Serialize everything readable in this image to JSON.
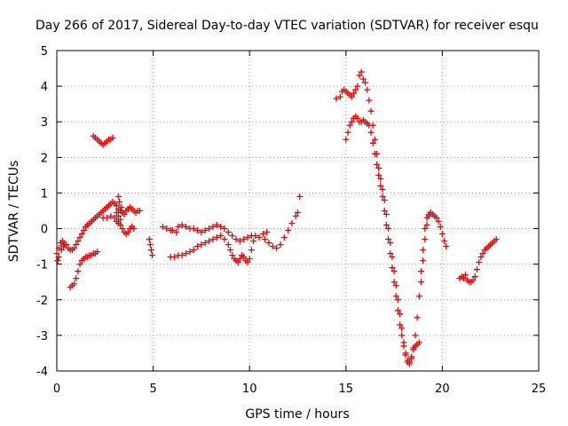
{
  "chart_data": {
    "type": "scatter",
    "title": "Day 266 of 2017, Sidereal Day-to-day VTEC variation (SDTVAR) for receiver esqu",
    "xlabel": "GPS time / hours",
    "ylabel": "SDTVAR / TECUs",
    "xlim": [
      0,
      25
    ],
    "ylim": [
      -4,
      5
    ],
    "xticks": [
      "0",
      "5",
      "10",
      "15",
      "20",
      "25"
    ],
    "yticks": [
      "-4",
      "-3",
      "-2",
      "-1",
      "0",
      "1",
      "2",
      "3",
      "4",
      "5"
    ],
    "grid": true,
    "marker": "+",
    "color": "#ee0000",
    "series": [
      {
        "points": [
          [
            0.0,
            -0.7
          ],
          [
            0.1,
            -0.55
          ],
          [
            0.2,
            -0.4
          ],
          [
            0.3,
            -0.35
          ],
          [
            0.4,
            -0.45
          ],
          [
            0.5,
            -0.45
          ],
          [
            0.6,
            -0.55
          ],
          [
            0.7,
            -0.6
          ],
          [
            0.8,
            -0.6
          ],
          [
            0.9,
            -0.55
          ],
          [
            1.0,
            -0.45
          ],
          [
            1.1,
            -0.35
          ],
          [
            1.2,
            -0.25
          ],
          [
            1.3,
            -0.15
          ],
          [
            1.4,
            -0.05
          ],
          [
            1.5,
            0.05
          ],
          [
            1.6,
            0.1
          ],
          [
            1.7,
            0.15
          ],
          [
            1.8,
            0.2
          ],
          [
            1.9,
            0.25
          ],
          [
            2.0,
            0.3
          ],
          [
            2.1,
            0.35
          ],
          [
            2.2,
            0.4
          ],
          [
            2.3,
            0.45
          ],
          [
            2.4,
            0.5
          ],
          [
            2.5,
            0.55
          ],
          [
            2.6,
            0.6
          ],
          [
            2.7,
            0.65
          ],
          [
            2.8,
            0.7
          ],
          [
            2.9,
            0.75
          ],
          [
            3.0,
            0.7
          ],
          [
            3.1,
            0.65
          ],
          [
            3.2,
            0.55
          ],
          [
            3.3,
            0.5
          ],
          [
            3.4,
            0.45
          ],
          [
            3.5,
            0.4
          ],
          [
            3.6,
            0.5
          ],
          [
            3.7,
            0.55
          ],
          [
            3.8,
            0.6
          ],
          [
            3.9,
            0.55
          ],
          [
            4.0,
            0.5
          ],
          [
            4.1,
            0.45
          ],
          [
            4.2,
            0.5
          ],
          [
            4.3,
            0.5
          ],
          [
            0.05,
            -0.9
          ],
          [
            0.1,
            -0.8
          ],
          [
            0.25,
            -0.6
          ],
          [
            0.35,
            -0.5
          ],
          [
            2.4,
            0.3
          ],
          [
            2.6,
            0.3
          ],
          [
            2.8,
            0.35
          ],
          [
            3.0,
            0.3
          ],
          [
            3.1,
            0.2
          ],
          [
            3.2,
            0.15
          ],
          [
            3.3,
            0.1
          ],
          [
            3.4,
            0.0
          ],
          [
            3.5,
            -0.1
          ],
          [
            3.6,
            -0.15
          ],
          [
            3.7,
            -0.1
          ],
          [
            3.8,
            0.0
          ],
          [
            3.9,
            0.05
          ],
          [
            4.0,
            0.0
          ],
          [
            3.2,
            0.9
          ],
          [
            3.25,
            0.75
          ],
          [
            3.35,
            0.6
          ],
          [
            3.4,
            0.45
          ],
          [
            3.3,
            0.25
          ],
          [
            3.2,
            0.35
          ],
          [
            3.1,
            0.45
          ],
          [
            4.8,
            -0.3
          ],
          [
            4.85,
            -0.45
          ],
          [
            4.9,
            -0.6
          ],
          [
            4.95,
            -0.75
          ],
          [
            0.7,
            -1.65
          ],
          [
            0.8,
            -1.6
          ],
          [
            0.9,
            -1.55
          ],
          [
            1.0,
            -1.4
          ],
          [
            1.1,
            -1.2
          ],
          [
            1.2,
            -1.0
          ],
          [
            1.3,
            -0.9
          ],
          [
            1.4,
            -0.85
          ],
          [
            1.5,
            -0.8
          ],
          [
            1.6,
            -0.8
          ],
          [
            1.7,
            -0.75
          ],
          [
            1.8,
            -0.75
          ],
          [
            1.9,
            -0.7
          ],
          [
            2.0,
            -0.7
          ],
          [
            2.1,
            -0.65
          ],
          [
            1.9,
            2.6
          ],
          [
            2.0,
            2.55
          ],
          [
            2.1,
            2.5
          ],
          [
            2.2,
            2.45
          ],
          [
            2.3,
            2.4
          ],
          [
            2.4,
            2.35
          ],
          [
            2.5,
            2.4
          ],
          [
            2.6,
            2.45
          ],
          [
            2.7,
            2.5
          ],
          [
            2.8,
            2.5
          ],
          [
            2.9,
            2.55
          ],
          [
            5.5,
            0.05
          ],
          [
            5.7,
            0.0
          ],
          [
            5.9,
            -0.05
          ],
          [
            6.0,
            -0.05
          ],
          [
            6.2,
            -0.1
          ],
          [
            6.3,
            0.05
          ],
          [
            6.5,
            0.1
          ],
          [
            6.7,
            0.05
          ],
          [
            6.9,
            0.0
          ],
          [
            7.1,
            0.0
          ],
          [
            7.3,
            -0.05
          ],
          [
            7.5,
            -0.1
          ],
          [
            7.7,
            -0.05
          ],
          [
            7.9,
            0.0
          ],
          [
            8.1,
            0.05
          ],
          [
            8.3,
            0.1
          ],
          [
            8.5,
            0.05
          ],
          [
            8.7,
            0.0
          ],
          [
            8.9,
            -0.1
          ],
          [
            9.1,
            -0.2
          ],
          [
            9.3,
            -0.3
          ],
          [
            9.5,
            -0.35
          ],
          [
            9.7,
            -0.3
          ],
          [
            9.9,
            -0.25
          ],
          [
            10.1,
            -0.2
          ],
          [
            10.3,
            -0.2
          ],
          [
            10.5,
            -0.25
          ],
          [
            10.7,
            -0.15
          ],
          [
            10.9,
            -0.1
          ],
          [
            5.9,
            -0.8
          ],
          [
            6.1,
            -0.8
          ],
          [
            6.3,
            -0.75
          ],
          [
            6.5,
            -0.75
          ],
          [
            6.7,
            -0.7
          ],
          [
            6.9,
            -0.65
          ],
          [
            7.1,
            -0.6
          ],
          [
            7.3,
            -0.5
          ],
          [
            7.5,
            -0.45
          ],
          [
            7.7,
            -0.4
          ],
          [
            7.9,
            -0.35
          ],
          [
            8.1,
            -0.3
          ],
          [
            8.3,
            -0.25
          ],
          [
            8.5,
            -0.2
          ],
          [
            8.7,
            -0.3
          ],
          [
            8.9,
            -0.45
          ],
          [
            9.0,
            -0.6
          ],
          [
            9.1,
            -0.75
          ],
          [
            9.2,
            -0.85
          ],
          [
            9.3,
            -0.9
          ],
          [
            9.4,
            -0.95
          ],
          [
            9.5,
            -0.85
          ],
          [
            9.6,
            -0.75
          ],
          [
            9.7,
            -0.8
          ],
          [
            9.8,
            -0.9
          ],
          [
            9.9,
            -0.95
          ],
          [
            10.0,
            -0.85
          ],
          [
            10.1,
            -0.6
          ],
          [
            10.2,
            -0.35
          ],
          [
            10.8,
            -0.3
          ],
          [
            11.0,
            -0.4
          ],
          [
            11.2,
            -0.5
          ],
          [
            11.4,
            -0.55
          ],
          [
            11.6,
            -0.45
          ],
          [
            11.8,
            -0.25
          ],
          [
            12.0,
            -0.05
          ],
          [
            12.2,
            0.15
          ],
          [
            12.4,
            0.35
          ],
          [
            12.5,
            0.45
          ],
          [
            12.6,
            0.9
          ],
          [
            14.5,
            3.65
          ],
          [
            14.7,
            3.7
          ],
          [
            14.8,
            3.85
          ],
          [
            14.9,
            3.9
          ],
          [
            15.0,
            3.85
          ],
          [
            15.1,
            3.8
          ],
          [
            15.2,
            3.75
          ],
          [
            15.3,
            3.7
          ],
          [
            15.4,
            3.8
          ],
          [
            15.5,
            3.9
          ],
          [
            15.6,
            4.0
          ],
          [
            15.7,
            4.3
          ],
          [
            15.8,
            4.4
          ],
          [
            15.9,
            4.2
          ],
          [
            16.0,
            4.1
          ],
          [
            16.1,
            3.9
          ],
          [
            16.2,
            3.6
          ],
          [
            16.3,
            3.3
          ],
          [
            16.4,
            2.9
          ],
          [
            16.5,
            2.5
          ],
          [
            16.6,
            2.1
          ],
          [
            16.7,
            1.7
          ],
          [
            16.8,
            1.4
          ],
          [
            16.9,
            1.1
          ],
          [
            17.0,
            0.8
          ],
          [
            17.1,
            0.4
          ],
          [
            17.2,
            0.0
          ],
          [
            17.3,
            -0.4
          ],
          [
            17.4,
            -0.8
          ],
          [
            17.5,
            -1.2
          ],
          [
            17.6,
            -1.6
          ],
          [
            17.7,
            -2.0
          ],
          [
            17.8,
            -2.4
          ],
          [
            17.9,
            -2.8
          ],
          [
            18.0,
            -3.2
          ],
          [
            18.1,
            -3.5
          ],
          [
            18.2,
            -3.7
          ],
          [
            18.3,
            -3.75
          ],
          [
            18.4,
            -3.6
          ],
          [
            18.5,
            -3.4
          ],
          [
            18.6,
            -3.3
          ],
          [
            18.7,
            -3.25
          ],
          [
            18.8,
            -3.2
          ],
          [
            15.0,
            2.5
          ],
          [
            15.1,
            2.7
          ],
          [
            15.2,
            2.9
          ],
          [
            15.3,
            3.0
          ],
          [
            15.4,
            3.1
          ],
          [
            15.5,
            3.15
          ],
          [
            15.6,
            3.1
          ],
          [
            15.7,
            3.0
          ],
          [
            15.8,
            3.0
          ],
          [
            15.9,
            3.05
          ],
          [
            16.0,
            3.0
          ],
          [
            16.1,
            2.95
          ],
          [
            16.2,
            2.9
          ],
          [
            16.3,
            2.7
          ],
          [
            16.4,
            2.4
          ],
          [
            16.5,
            2.1
          ],
          [
            16.6,
            1.8
          ],
          [
            16.7,
            1.5
          ],
          [
            16.8,
            1.2
          ],
          [
            16.9,
            0.9
          ],
          [
            17.0,
            0.5
          ],
          [
            17.1,
            0.1
          ],
          [
            17.2,
            -0.3
          ],
          [
            17.3,
            -0.7
          ],
          [
            17.4,
            -1.1
          ],
          [
            17.5,
            -1.5
          ],
          [
            17.6,
            -1.9
          ],
          [
            17.7,
            -2.3
          ],
          [
            17.8,
            -2.7
          ],
          [
            17.9,
            -3.0
          ],
          [
            18.0,
            -3.3
          ],
          [
            18.1,
            -3.55
          ],
          [
            18.2,
            -3.75
          ],
          [
            18.3,
            -3.8
          ],
          [
            18.4,
            -3.65
          ],
          [
            18.5,
            -3.35
          ],
          [
            18.6,
            -3.0
          ],
          [
            18.7,
            -2.5
          ],
          [
            18.8,
            -1.9
          ],
          [
            18.9,
            -1.2
          ],
          [
            19.0,
            -0.6
          ],
          [
            19.1,
            0.0
          ],
          [
            19.2,
            0.3
          ],
          [
            19.3,
            0.4
          ],
          [
            19.4,
            0.45
          ],
          [
            19.5,
            0.4
          ],
          [
            19.6,
            0.35
          ],
          [
            19.7,
            0.3
          ],
          [
            19.8,
            0.2
          ],
          [
            19.9,
            0.05
          ],
          [
            20.0,
            -0.15
          ],
          [
            20.1,
            -0.35
          ],
          [
            20.2,
            -0.5
          ],
          [
            18.9,
            -1.5
          ],
          [
            19.0,
            -0.9
          ],
          [
            19.1,
            -0.3
          ],
          [
            19.2,
            0.1
          ],
          [
            19.3,
            0.35
          ],
          [
            20.9,
            -1.4
          ],
          [
            21.0,
            -1.35
          ],
          [
            21.1,
            -1.4
          ],
          [
            21.2,
            -1.3
          ],
          [
            21.3,
            -1.45
          ],
          [
            21.4,
            -1.5
          ],
          [
            21.5,
            -1.5
          ],
          [
            21.6,
            -1.45
          ],
          [
            21.7,
            -1.35
          ],
          [
            21.8,
            -1.15
          ],
          [
            21.9,
            -0.95
          ],
          [
            22.0,
            -0.8
          ],
          [
            22.1,
            -0.7
          ],
          [
            22.2,
            -0.6
          ],
          [
            22.3,
            -0.55
          ],
          [
            22.4,
            -0.5
          ],
          [
            22.5,
            -0.45
          ],
          [
            22.6,
            -0.4
          ],
          [
            22.7,
            -0.35
          ],
          [
            22.8,
            -0.3
          ]
        ]
      }
    ]
  }
}
